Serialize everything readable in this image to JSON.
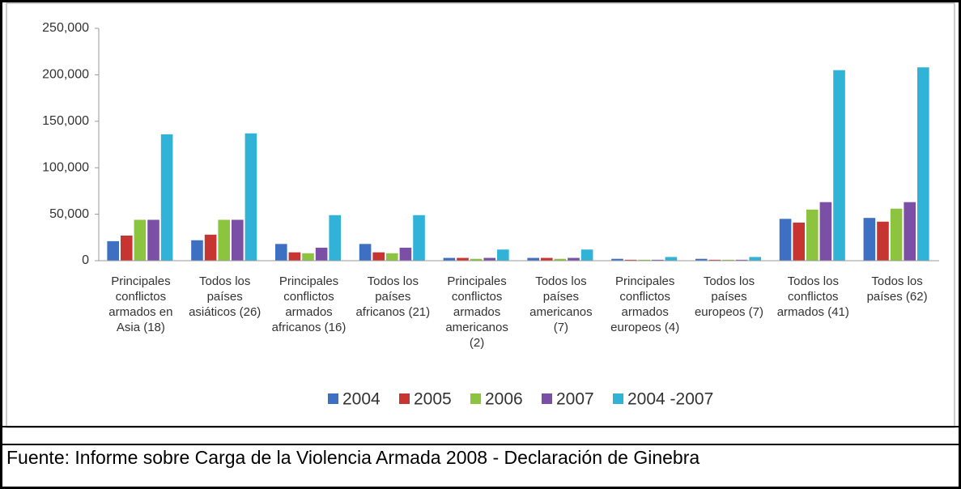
{
  "chart_data": {
    "type": "bar",
    "categories": [
      "Principales conflictos armados en Asia (18)",
      "Todos los países asiáticos (26)",
      "Principales conflictos armados africanos (16)",
      "Todos los países africanos (21)",
      "Principales conflictos armados americanos (2)",
      "Todos los países americanos (7)",
      "Principales conflictos armados europeos (4)",
      "Todos los países europeos (7)",
      "Todos los conflictos armados (41)",
      "Todos los países (62)"
    ],
    "series": [
      {
        "name": "2004",
        "color": "#3d6fc2",
        "values": [
          21000,
          22000,
          18000,
          18000,
          3000,
          3000,
          2000,
          2000,
          45000,
          46000
        ]
      },
      {
        "name": "2005",
        "color": "#c73532",
        "values": [
          27000,
          28000,
          9000,
          9000,
          3000,
          3000,
          1000,
          1000,
          41000,
          42000
        ]
      },
      {
        "name": "2006",
        "color": "#8cc43f",
        "values": [
          44000,
          44000,
          8000,
          8000,
          2000,
          2000,
          1000,
          1000,
          55000,
          56000
        ]
      },
      {
        "name": "2007",
        "color": "#7b4fa6",
        "values": [
          44000,
          44000,
          14000,
          14000,
          3000,
          3000,
          1000,
          1000,
          63000,
          63000
        ]
      },
      {
        "name": "2004 -2007",
        "color": "#30b3d6",
        "values": [
          136000,
          137000,
          49000,
          49000,
          12000,
          12000,
          4000,
          4000,
          205000,
          208000
        ]
      }
    ],
    "ylim": [
      0,
      250000
    ],
    "yticks": [
      0,
      {
        "value": 50000,
        "label": "50,000"
      },
      {
        "value": 100000,
        "label": "100,000"
      },
      {
        "value": 150000,
        "label": "150,000"
      },
      {
        "value": 200000,
        "label": "200,000"
      },
      {
        "value": 250000,
        "label": "250,000"
      }
    ],
    "grid": false,
    "legend": "bottom"
  },
  "source": "Fuente: Informe sobre Carga de la Violencia Armada 2008 - Declaración de Ginebra"
}
